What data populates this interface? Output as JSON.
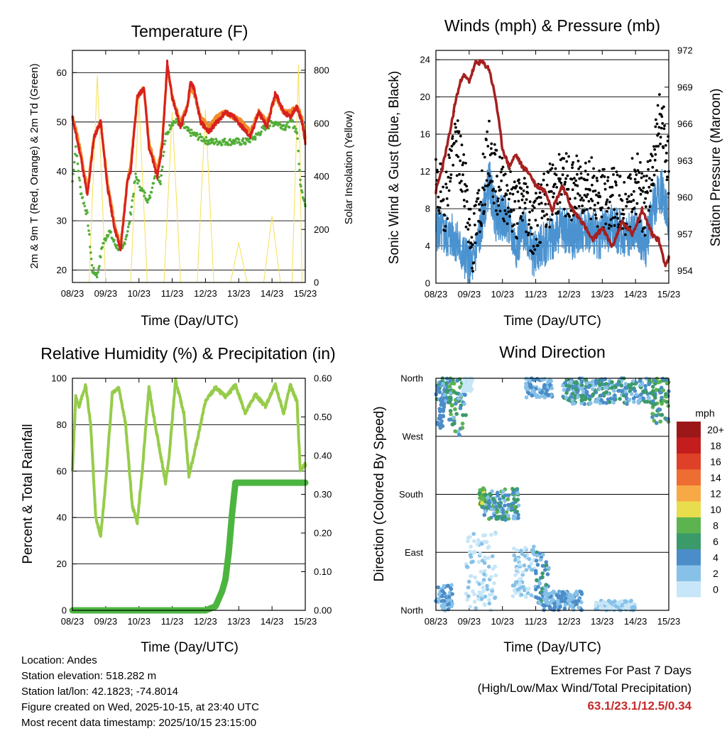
{
  "colors": {
    "temp2m": "#d8201f",
    "temp9m": "#f08a2a",
    "dew": "#52ad38",
    "solar": "#f6e050",
    "wind": "#4b93d0",
    "gust": "#000000",
    "pressure": "#a52020",
    "rh": "#96cc4a",
    "precip": "#4cb540",
    "grid": "#000000"
  },
  "chart_data": [
    {
      "type": "line",
      "title": "Temperature (F)",
      "xlabel": "Time (Day/UTC)",
      "ylabel": "2m & 9m T (Red, Orange) & 2m Td (Green)",
      "ylabel_right": "Solar Insolation (Yellow)",
      "xticks": [
        "08/23",
        "09/23",
        "10/23",
        "11/23",
        "12/23",
        "13/23",
        "14/23",
        "15/23"
      ],
      "xlim": [
        0,
        7
      ],
      "ylim": [
        17.5,
        64.5
      ],
      "yticks": [
        20,
        30,
        40,
        50,
        60
      ],
      "ylim_right": [
        0,
        875
      ],
      "yticks_right": [
        0,
        200,
        400,
        600,
        800
      ],
      "series": [
        {
          "name": "2m T",
          "axis": "left",
          "x": [
            0,
            0.12,
            0.25,
            0.45,
            0.65,
            0.85,
            1.05,
            1.25,
            1.45,
            1.65,
            1.75,
            1.95,
            2.15,
            2.3,
            2.55,
            2.7,
            2.85,
            3.0,
            3.25,
            3.45,
            3.55,
            3.65,
            3.85,
            4.1,
            4.35,
            4.6,
            4.85,
            5.1,
            5.35,
            5.6,
            5.85,
            6.1,
            6.35,
            6.55,
            6.75,
            6.9,
            7.0
          ],
          "values": [
            51,
            47,
            43,
            35,
            47,
            50,
            37,
            29,
            24,
            38,
            40,
            55,
            57,
            45,
            39,
            45,
            62,
            55,
            49,
            53,
            58,
            57,
            50,
            48,
            50,
            52,
            51,
            49,
            47,
            52,
            49,
            56,
            52,
            51,
            53,
            50,
            46
          ]
        },
        {
          "name": "9m T",
          "axis": "left",
          "x": [
            0,
            0.12,
            0.25,
            0.45,
            0.65,
            0.85,
            1.05,
            1.25,
            1.45,
            1.65,
            1.75,
            1.95,
            2.15,
            2.3,
            2.55,
            2.7,
            2.85,
            3.0,
            3.25,
            3.45,
            3.55,
            3.65,
            3.85,
            4.1,
            4.35,
            4.6,
            4.85,
            5.1,
            5.35,
            5.6,
            5.85,
            6.1,
            6.35,
            6.55,
            6.75,
            6.9,
            7.0
          ],
          "values": [
            51,
            48,
            44,
            36,
            47,
            50,
            38,
            30,
            25,
            38,
            41,
            55,
            57,
            46,
            40,
            46,
            61,
            55,
            50,
            53,
            57,
            56,
            51,
            49,
            51,
            52,
            51,
            50,
            48,
            52,
            50,
            55,
            52,
            52,
            53,
            51,
            47
          ]
        },
        {
          "name": "2m Td",
          "axis": "left",
          "x": [
            0,
            0.1,
            0.25,
            0.45,
            0.6,
            0.75,
            0.9,
            1.1,
            1.3,
            1.5,
            1.7,
            1.9,
            2.1,
            2.3,
            2.5,
            2.65,
            2.8,
            3.0,
            3.2,
            3.5,
            3.8,
            4.1,
            4.4,
            4.8,
            5.2,
            5.5,
            5.8,
            6.1,
            6.4,
            6.6,
            6.75,
            6.85,
            7.0
          ],
          "values": [
            38,
            45,
            36,
            31,
            20,
            19,
            25,
            28,
            25,
            24,
            29,
            39,
            36,
            34,
            40,
            38,
            47,
            50,
            50,
            48,
            47,
            46,
            46,
            46,
            46,
            47,
            49,
            50,
            49,
            50,
            48,
            38,
            33
          ]
        },
        {
          "name": "Solar Insolation",
          "axis": "right",
          "x": [
            0,
            0.5,
            0.75,
            1.0,
            1.25,
            1.75,
            2.0,
            2.25,
            2.75,
            3.0,
            3.25,
            3.75,
            4.0,
            4.25,
            4.75,
            5.0,
            5.25,
            5.75,
            6.0,
            6.25,
            6.6,
            6.8,
            6.9
          ],
          "values": [
            0,
            0,
            780,
            0,
            0,
            0,
            690,
            0,
            0,
            640,
            0,
            0,
            650,
            0,
            0,
            150,
            0,
            0,
            250,
            0,
            0,
            820,
            0
          ]
        }
      ]
    },
    {
      "type": "line",
      "title": "Winds (mph) & Pressure (mb)",
      "xlabel": "Time (Day/UTC)",
      "ylabel": "Sonic Wind & Gust (Blue, Black)",
      "ylabel_right": "Station Pressure (Maroon)",
      "xticks": [
        "08/23",
        "09/23",
        "10/23",
        "11/23",
        "12/23",
        "13/23",
        "14/23",
        "15/23"
      ],
      "xlim": [
        0,
        7
      ],
      "ylim": [
        0,
        25
      ],
      "yticks": [
        0,
        4,
        8,
        12,
        16,
        20,
        24
      ],
      "ylim_right": [
        953,
        972
      ],
      "yticks_right": [
        954,
        957,
        960,
        963,
        966,
        969,
        972
      ],
      "series": [
        {
          "name": "Sonic Wind",
          "axis": "left",
          "x": [
            0,
            0.3,
            0.55,
            0.8,
            1.1,
            1.3,
            1.6,
            1.8,
            2.1,
            2.4,
            2.7,
            2.9,
            3.2,
            3.5,
            3.8,
            4.1,
            4.5,
            4.9,
            5.3,
            5.7,
            6.0,
            6.3,
            6.6,
            6.8,
            7.0
          ],
          "values": [
            6,
            5,
            5,
            3,
            2,
            5,
            11,
            7,
            7,
            4,
            6,
            3,
            4,
            5,
            6,
            5,
            6,
            5,
            6,
            5,
            6,
            4,
            9,
            10,
            7
          ]
        },
        {
          "name": "Gust",
          "axis": "left",
          "x": [
            0,
            0.3,
            0.55,
            0.8,
            1.1,
            1.3,
            1.6,
            1.8,
            2.1,
            2.4,
            2.7,
            2.9,
            3.2,
            3.5,
            3.8,
            4.1,
            4.5,
            4.9,
            5.3,
            5.7,
            6.0,
            6.3,
            6.6,
            6.8,
            7.0
          ],
          "values": [
            10,
            9,
            16,
            12,
            4,
            8,
            14,
            11,
            10,
            8,
            9,
            6,
            8,
            10,
            11,
            10,
            11,
            9,
            9,
            8,
            11,
            8,
            15,
            18,
            12
          ]
        },
        {
          "name": "Station Pressure",
          "axis": "right",
          "x": [
            0,
            0.2,
            0.4,
            0.6,
            0.8,
            1.0,
            1.2,
            1.4,
            1.6,
            1.8,
            2.0,
            2.2,
            2.4,
            2.6,
            2.8,
            3.0,
            3.3,
            3.5,
            3.8,
            4.1,
            4.4,
            4.7,
            5.0,
            5.3,
            5.6,
            5.9,
            6.2,
            6.5,
            6.7,
            6.9,
            7.0
          ],
          "values": [
            960.5,
            962.5,
            965,
            968,
            970,
            969.5,
            971,
            971,
            970.5,
            968,
            964,
            962.5,
            963.5,
            962.5,
            962,
            961,
            960.5,
            959,
            961,
            959,
            958,
            956.5,
            957.5,
            956,
            958,
            957,
            959,
            957,
            956.5,
            954.5,
            955
          ]
        }
      ]
    },
    {
      "type": "line",
      "title": "Relative Humidity (%) & Precipitation (in)",
      "xlabel": "Time (Day/UTC)",
      "ylabel": "Percent & Total Rainfall",
      "xticks": [
        "08/23",
        "09/23",
        "10/23",
        "11/23",
        "12/23",
        "13/23",
        "14/23",
        "15/23"
      ],
      "xlim": [
        0,
        7
      ],
      "ylim": [
        0,
        100
      ],
      "yticks": [
        0,
        20,
        40,
        60,
        80,
        100
      ],
      "ylim_right": [
        0,
        0.6
      ],
      "yticks_right": [
        "0.00",
        "0.10",
        "0.20",
        "0.30",
        "0.40",
        "0.50",
        "0.60"
      ],
      "series": [
        {
          "name": "Relative Humidity",
          "axis": "left",
          "x": [
            0,
            0.1,
            0.2,
            0.4,
            0.55,
            0.7,
            0.85,
            1.0,
            1.2,
            1.4,
            1.6,
            1.8,
            1.95,
            2.1,
            2.3,
            2.55,
            2.8,
            2.9,
            3.1,
            3.35,
            3.5,
            3.7,
            3.85,
            4.0,
            4.3,
            4.6,
            4.9,
            5.2,
            5.5,
            5.8,
            6.1,
            6.35,
            6.55,
            6.75,
            6.85,
            7.0
          ],
          "values": [
            60,
            92,
            88,
            97,
            80,
            40,
            32,
            55,
            94,
            96,
            80,
            45,
            38,
            60,
            96,
            75,
            55,
            65,
            99,
            85,
            58,
            70,
            80,
            90,
            96,
            92,
            97,
            85,
            93,
            88,
            97,
            85,
            97,
            90,
            60,
            63
          ]
        },
        {
          "name": "Total Precipitation",
          "axis": "right",
          "x": [
            0,
            1,
            2,
            3,
            4,
            4.3,
            4.5,
            4.6,
            4.7,
            4.8,
            4.9,
            5.0,
            6.0,
            7.0
          ],
          "values": [
            0,
            0,
            0,
            0,
            0,
            0.01,
            0.05,
            0.08,
            0.15,
            0.25,
            0.33,
            0.33,
            0.33,
            0.33
          ]
        }
      ]
    },
    {
      "type": "scatter",
      "title": "Wind Direction",
      "xlabel": "Time (Day/UTC)",
      "ylabel": "Direction (Colored By Speed)",
      "xticks": [
        "08/23",
        "09/23",
        "10/23",
        "11/23",
        "12/23",
        "13/23",
        "14/23",
        "15/23"
      ],
      "xlim": [
        0,
        7
      ],
      "ylim": [
        0,
        360
      ],
      "yticks": [
        "North",
        "East",
        "South",
        "West",
        "North"
      ],
      "colorbar": {
        "title": "mph",
        "labels": [
          "0",
          "2",
          "4",
          "6",
          "8",
          "10",
          "12",
          "14",
          "16",
          "18",
          "20+"
        ],
        "colors": [
          "#c7e6f7",
          "#87c1e8",
          "#4b8dc9",
          "#3a9a6a",
          "#5cb34f",
          "#e8dd4d",
          "#f7a945",
          "#ee6d32",
          "#df4028",
          "#c41d1d",
          "#9c1818"
        ]
      },
      "clusters": [
        {
          "x": [
            0,
            0.5
          ],
          "y": [
            320,
            360
          ],
          "speed": [
            2,
            8
          ]
        },
        {
          "x": [
            0.05,
            0.25
          ],
          "y": [
            280,
            330
          ],
          "speed": [
            4,
            6
          ]
        },
        {
          "x": [
            0.4,
            0.9
          ],
          "y": [
            270,
            360
          ],
          "speed": [
            2,
            10
          ]
        },
        {
          "x": [
            0.8,
            1.1
          ],
          "y": [
            340,
            360
          ],
          "speed": [
            0,
            2
          ]
        },
        {
          "x": [
            1.3,
            1.5
          ],
          "y": [
            160,
            190
          ],
          "speed": [
            6,
            11
          ]
        },
        {
          "x": [
            1.45,
            2.0
          ],
          "y": [
            140,
            185
          ],
          "speed": [
            2,
            9
          ]
        },
        {
          "x": [
            2.0,
            2.5
          ],
          "y": [
            140,
            190
          ],
          "speed": [
            2,
            9
          ]
        },
        {
          "x": [
            0.9,
            1.8
          ],
          "y": [
            0,
            120
          ],
          "speed": [
            0,
            3
          ]
        },
        {
          "x": [
            2.3,
            3.0
          ],
          "y": [
            20,
            100
          ],
          "speed": [
            0,
            4
          ]
        },
        {
          "x": [
            3.0,
            3.4
          ],
          "y": [
            10,
            90
          ],
          "speed": [
            2,
            7
          ]
        },
        {
          "x": [
            0,
            0.5
          ],
          "y": [
            0,
            40
          ],
          "speed": [
            2,
            6
          ]
        },
        {
          "x": [
            3.2,
            4.4
          ],
          "y": [
            0,
            30
          ],
          "speed": [
            2,
            6
          ]
        },
        {
          "x": [
            4.8,
            6.0
          ],
          "y": [
            0,
            15
          ],
          "speed": [
            0,
            4
          ]
        },
        {
          "x": [
            2.7,
            3.5
          ],
          "y": [
            330,
            360
          ],
          "speed": [
            2,
            5
          ]
        },
        {
          "x": [
            3.8,
            6.6
          ],
          "y": [
            320,
            360
          ],
          "speed": [
            2,
            8
          ]
        },
        {
          "x": [
            6.5,
            7.0
          ],
          "y": [
            290,
            360
          ],
          "speed": [
            4,
            10
          ]
        }
      ]
    }
  ],
  "info": {
    "location": "Location: Andes",
    "elevation": "Station elevation: 518.282 m",
    "latlon": "Station lat/lon: 42.1823; -74.8014",
    "created": "Figure created on Wed, 2025-10-15, at 23:40 UTC",
    "recent": "Most recent data timestamp: 2025/10/15 23:15:00"
  },
  "extremes": {
    "line1": "Extremes For Past 7 Days",
    "line2": "(High/Low/Max Wind/Total Precipitation)",
    "values": "63.1/23.1/12.5/0.34"
  }
}
